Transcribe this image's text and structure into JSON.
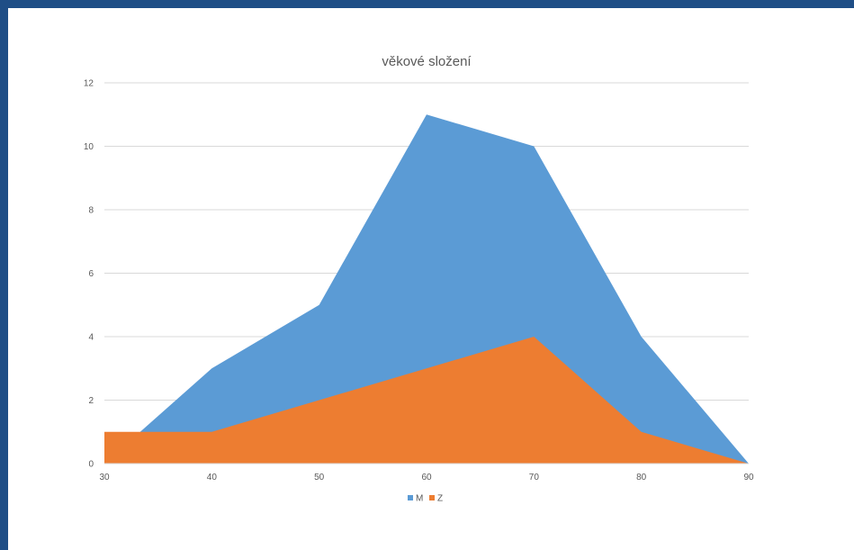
{
  "chart_data": {
    "type": "area",
    "title": "věkové složení",
    "x": [
      30,
      40,
      50,
      60,
      70,
      80,
      90
    ],
    "xlim": [
      30,
      90
    ],
    "ylim": [
      0,
      12
    ],
    "x_ticks": [
      "30",
      "40",
      "50",
      "60",
      "70",
      "80",
      "90"
    ],
    "y_ticks": [
      "0",
      "2",
      "4",
      "6",
      "8",
      "10",
      "12"
    ],
    "grid": "horizontal",
    "legend_position": "bottom",
    "series": [
      {
        "name": "M",
        "color": "#5b9bd5",
        "values": [
          0,
          3,
          5,
          11,
          10,
          4,
          0
        ]
      },
      {
        "name": "Z",
        "color": "#ed7d31",
        "values": [
          1,
          1,
          2,
          3,
          4,
          1,
          0
        ]
      }
    ]
  }
}
